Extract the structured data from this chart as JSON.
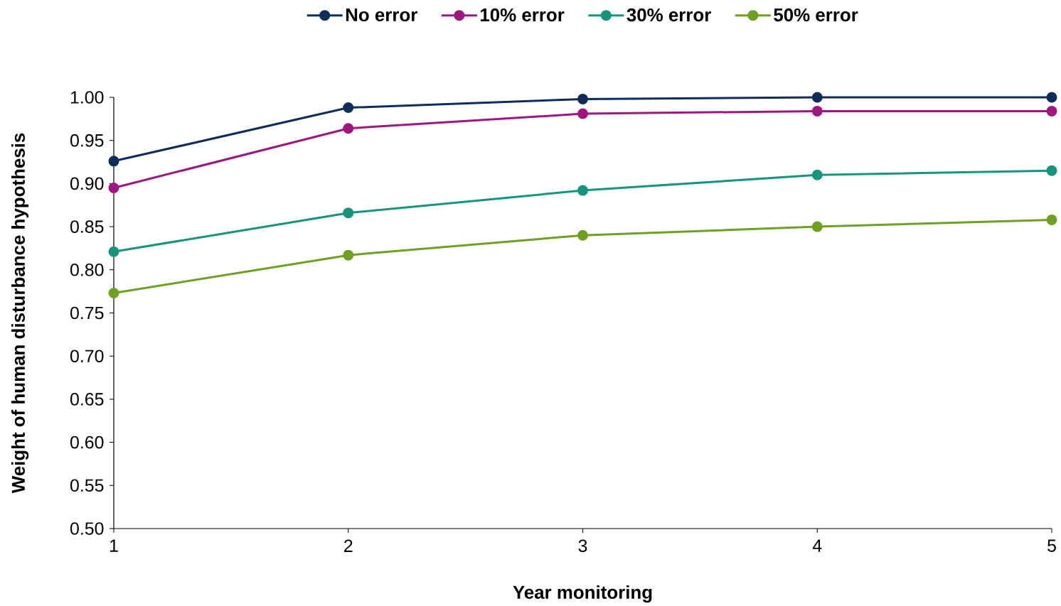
{
  "chart_data": {
    "type": "line",
    "xlabel": "Year monitoring",
    "ylabel": "Weight of human disturbance hypothesis",
    "x": [
      1,
      2,
      3,
      4,
      5
    ],
    "series": [
      {
        "name": "No error",
        "color": "#0e2d5a",
        "values": [
          0.926,
          0.988,
          0.998,
          1.0,
          1.0
        ]
      },
      {
        "name": "10% error",
        "color": "#a1157f",
        "values": [
          0.895,
          0.964,
          0.981,
          0.984,
          0.984
        ]
      },
      {
        "name": "30% error",
        "color": "#14957d",
        "values": [
          0.821,
          0.866,
          0.892,
          0.91,
          0.915
        ]
      },
      {
        "name": "50% error",
        "color": "#6ea121",
        "values": [
          0.773,
          0.817,
          0.84,
          0.85,
          0.858
        ]
      }
    ],
    "xlim": [
      1,
      5
    ],
    "xticks": [
      1,
      2,
      3,
      4,
      5
    ],
    "ylim": [
      0.5,
      1.0
    ],
    "yticks": [
      {
        "value": 0.5,
        "label": "0.50"
      },
      {
        "value": 0.55,
        "label": "0.55"
      },
      {
        "value": 0.6,
        "label": "0.60"
      },
      {
        "value": 0.65,
        "label": "0.65"
      },
      {
        "value": 0.7,
        "label": "0.70"
      },
      {
        "value": 0.75,
        "label": "0.75"
      },
      {
        "value": 0.8,
        "label": "0.80"
      },
      {
        "value": 0.85,
        "label": "0.85"
      },
      {
        "value": 0.9,
        "label": "0.90"
      },
      {
        "value": 0.95,
        "label": "0.95"
      },
      {
        "value": 1.0,
        "label": "1.00"
      }
    ],
    "legend": "top",
    "marker": "circle",
    "line_style": "solid"
  }
}
